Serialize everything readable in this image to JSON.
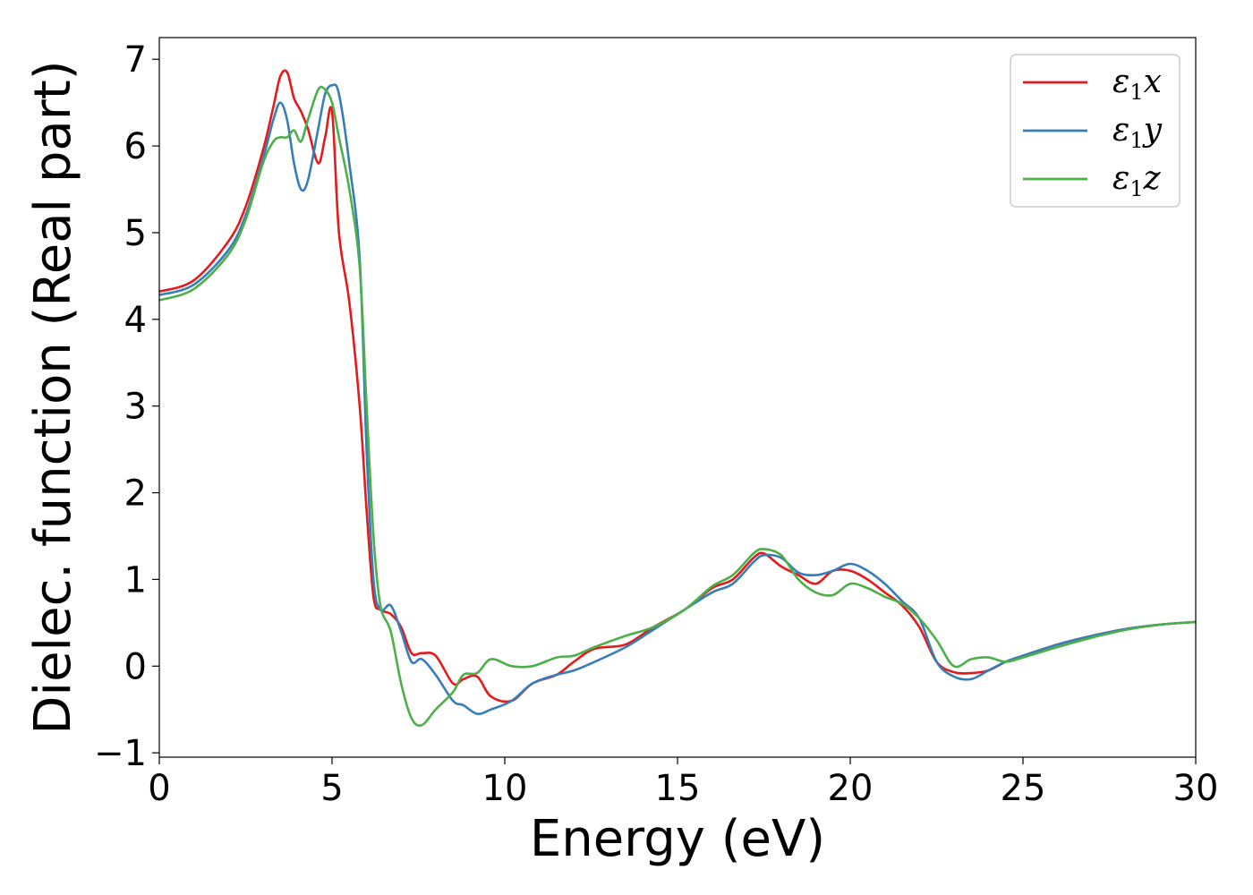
{
  "chart_data": {
    "type": "line",
    "title": "",
    "xlabel": "Energy (eV)",
    "ylabel": "Dielec. function (Real part)",
    "xlim": [
      0,
      30
    ],
    "ylim": [
      -1.05,
      7.25
    ],
    "xticks": [
      0,
      5,
      10,
      15,
      20,
      25,
      30
    ],
    "yticks": [
      -1,
      0,
      1,
      2,
      3,
      4,
      5,
      6,
      7
    ],
    "xtick_labels": [
      "0",
      "5",
      "10",
      "15",
      "20",
      "25",
      "30"
    ],
    "ytick_labels": [
      "−1",
      "0",
      "1",
      "2",
      "3",
      "4",
      "5",
      "6",
      "7"
    ],
    "grid": false,
    "legend_position": "top-right",
    "series": [
      {
        "name": "ε₁x",
        "label_base": "ε",
        "label_sub": "1",
        "label_suffix": "x",
        "color": "#e41a1c",
        "x": [
          0,
          1,
          2,
          2.5,
          3,
          3.3,
          3.5,
          3.7,
          3.9,
          4.1,
          4.3,
          4.6,
          4.8,
          5.0,
          5.2,
          5.5,
          5.8,
          6.0,
          6.2,
          6.4,
          6.7,
          7.0,
          7.3,
          7.6,
          8.0,
          8.5,
          8.8,
          9.2,
          9.6,
          10.2,
          10.8,
          11.5,
          12,
          12.6,
          13.5,
          14.3,
          15.2,
          16,
          16.6,
          17.2,
          17.5,
          18,
          18.5,
          19,
          19.5,
          20,
          20.5,
          21,
          21.5,
          22,
          22.5,
          23,
          23.5,
          24,
          24.5,
          25,
          26,
          27,
          28,
          29,
          30
        ],
        "y": [
          4.32,
          4.45,
          4.9,
          5.3,
          5.95,
          6.45,
          6.8,
          6.85,
          6.55,
          6.4,
          6.2,
          5.8,
          6.1,
          6.4,
          5.0,
          4.2,
          3.0,
          1.8,
          0.8,
          0.65,
          0.6,
          0.45,
          0.15,
          0.15,
          0.12,
          -0.2,
          -0.15,
          -0.12,
          -0.35,
          -0.4,
          -0.2,
          -0.1,
          0.05,
          0.2,
          0.25,
          0.45,
          0.65,
          0.9,
          1.0,
          1.25,
          1.3,
          1.15,
          1.05,
          0.95,
          1.1,
          1.1,
          1.0,
          0.85,
          0.7,
          0.45,
          0.05,
          -0.07,
          -0.08,
          -0.05,
          0.05,
          0.12,
          0.25,
          0.35,
          0.43,
          0.48,
          0.51
        ]
      },
      {
        "name": "ε₁y",
        "label_base": "ε",
        "label_sub": "1",
        "label_suffix": "y",
        "color": "#377eb8",
        "x": [
          0,
          1,
          2,
          2.5,
          3,
          3.3,
          3.5,
          3.7,
          3.9,
          4.1,
          4.3,
          4.6,
          4.8,
          5.0,
          5.2,
          5.5,
          5.8,
          6.0,
          6.2,
          6.4,
          6.7,
          7.0,
          7.3,
          7.6,
          8.0,
          8.5,
          8.8,
          9.2,
          9.6,
          10.2,
          10.8,
          11.5,
          12,
          12.6,
          13.5,
          14.3,
          15.2,
          16,
          16.6,
          17.2,
          17.5,
          18,
          18.5,
          19,
          19.5,
          20,
          20.5,
          21,
          21.5,
          22,
          22.5,
          23,
          23.5,
          24,
          24.5,
          25,
          26,
          27,
          28,
          29,
          30
        ],
        "y": [
          4.28,
          4.4,
          4.8,
          5.2,
          5.85,
          6.3,
          6.5,
          6.3,
          5.8,
          5.5,
          5.6,
          6.2,
          6.6,
          6.7,
          6.6,
          5.8,
          4.7,
          2.5,
          1.0,
          0.65,
          0.7,
          0.4,
          0.05,
          0.08,
          -0.1,
          -0.4,
          -0.45,
          -0.55,
          -0.5,
          -0.4,
          -0.2,
          -0.1,
          -0.05,
          0.05,
          0.22,
          0.42,
          0.65,
          0.85,
          0.95,
          1.2,
          1.28,
          1.25,
          1.08,
          1.05,
          1.1,
          1.18,
          1.1,
          0.95,
          0.75,
          0.55,
          0.05,
          -0.12,
          -0.15,
          -0.05,
          0.05,
          0.12,
          0.25,
          0.35,
          0.43,
          0.48,
          0.51
        ]
      },
      {
        "name": "ε₁z",
        "label_base": "ε",
        "label_sub": "1",
        "label_suffix": "z",
        "color": "#4daf4a",
        "x": [
          0,
          1,
          2,
          2.5,
          3,
          3.3,
          3.5,
          3.7,
          3.9,
          4.1,
          4.3,
          4.6,
          4.8,
          5.0,
          5.2,
          5.5,
          5.8,
          6.0,
          6.2,
          6.4,
          6.7,
          7.0,
          7.3,
          7.6,
          8.0,
          8.5,
          8.8,
          9.2,
          9.6,
          10.2,
          10.8,
          11.5,
          12,
          12.6,
          13.5,
          14.3,
          15.2,
          16,
          16.6,
          17.2,
          17.5,
          18,
          18.5,
          19,
          19.5,
          20,
          20.5,
          21,
          21.5,
          22,
          22.5,
          23,
          23.5,
          24,
          24.5,
          25,
          26,
          27,
          28,
          29,
          30
        ],
        "y": [
          4.22,
          4.35,
          4.75,
          5.15,
          5.8,
          6.05,
          6.1,
          6.1,
          6.18,
          6.05,
          6.3,
          6.65,
          6.65,
          6.5,
          6.1,
          5.5,
          4.6,
          3.0,
          1.5,
          0.7,
          0.4,
          -0.2,
          -0.6,
          -0.68,
          -0.5,
          -0.3,
          -0.1,
          -0.08,
          0.08,
          0.0,
          0.0,
          0.1,
          0.12,
          0.22,
          0.35,
          0.45,
          0.65,
          0.92,
          1.05,
          1.3,
          1.35,
          1.28,
          1.0,
          0.85,
          0.82,
          0.95,
          0.9,
          0.8,
          0.72,
          0.55,
          0.3,
          0.0,
          0.08,
          0.1,
          0.05,
          0.1,
          0.22,
          0.33,
          0.42,
          0.48,
          0.51
        ]
      }
    ]
  }
}
